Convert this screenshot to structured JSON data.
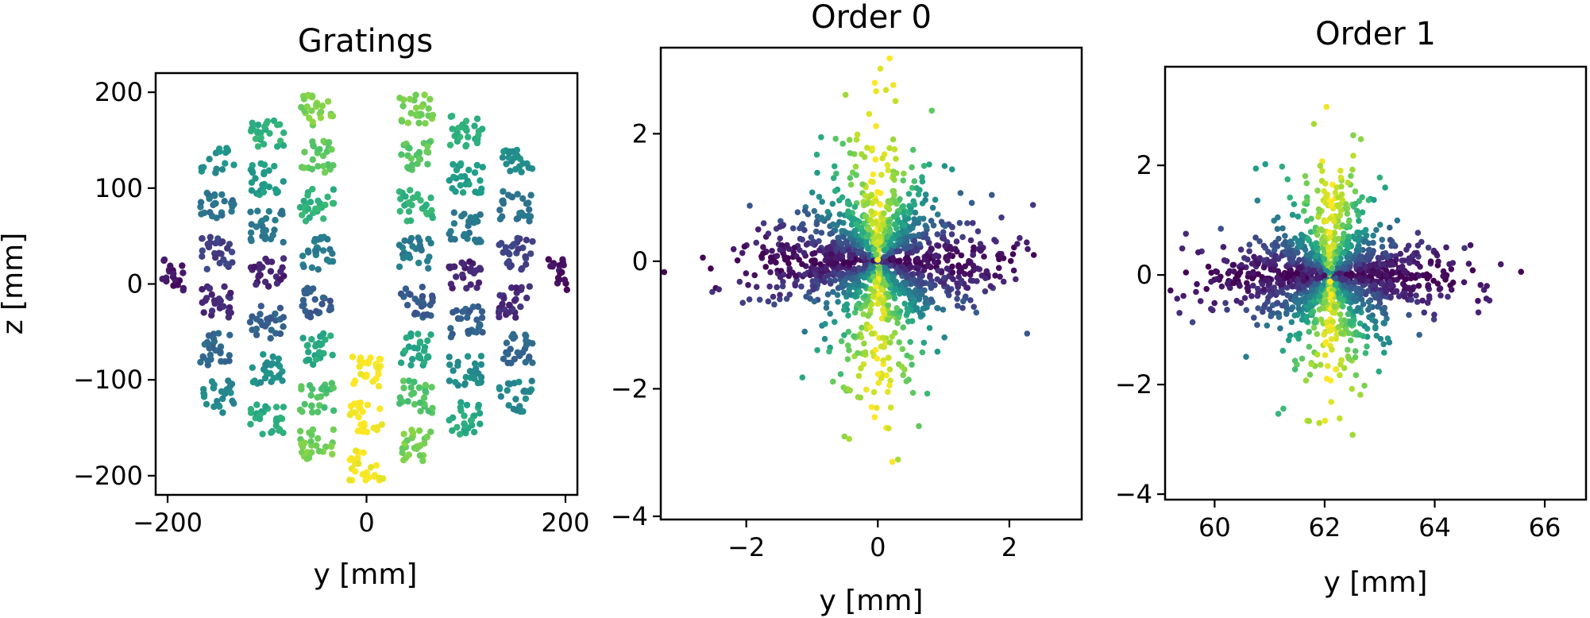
{
  "chart_data": [
    {
      "type": "scatter",
      "title": "Gratings",
      "xlabel": "y [mm]",
      "ylabel": "z [mm]",
      "xlim": [
        -212,
        212
      ],
      "ylim": [
        -220,
        220
      ],
      "xticks": [
        -200,
        0,
        200
      ],
      "yticks": [
        -200,
        -100,
        0,
        100,
        200
      ],
      "xtick_labels": [
        "−200",
        "0",
        "200"
      ],
      "ytick_labels": [
        "−200",
        "−100",
        "0",
        "100",
        "200"
      ],
      "colormap": "viridis",
      "grid": false,
      "description_of_points": "Segmented circular aperture of grating facets (radius ~200 mm) with a vertical gap near y=0 in the upper half; color varies with facet position."
    },
    {
      "type": "scatter",
      "title": "Order 0",
      "xlabel": "y [mm]",
      "ylabel": "",
      "xlim": [
        -3.3,
        3.1
      ],
      "ylim": [
        -4.05,
        3.35
      ],
      "xticks": [
        -2,
        0,
        2
      ],
      "yticks": [
        -4,
        -2,
        0,
        2
      ],
      "xtick_labels": [
        "−2",
        "0",
        "2"
      ],
      "ytick_labels": [
        "−4",
        "−2",
        "0",
        "2"
      ],
      "colormap": "viridis",
      "grid": false,
      "center": [
        0,
        0
      ]
    },
    {
      "type": "scatter",
      "title": "Order 1",
      "xlabel": "y [mm]",
      "ylabel": "",
      "xlim": [
        59.1,
        66.75
      ],
      "ylim": [
        -4.1,
        3.8
      ],
      "xticks": [
        60,
        62,
        64,
        66
      ],
      "yticks": [
        -4,
        -2,
        0,
        2
      ],
      "xtick_labels": [
        "60",
        "62",
        "64",
        "66"
      ],
      "ytick_labels": [
        "−4",
        "−2",
        "0",
        "2"
      ],
      "colormap": "viridis",
      "grid": false,
      "center": [
        62.1,
        0
      ]
    }
  ]
}
